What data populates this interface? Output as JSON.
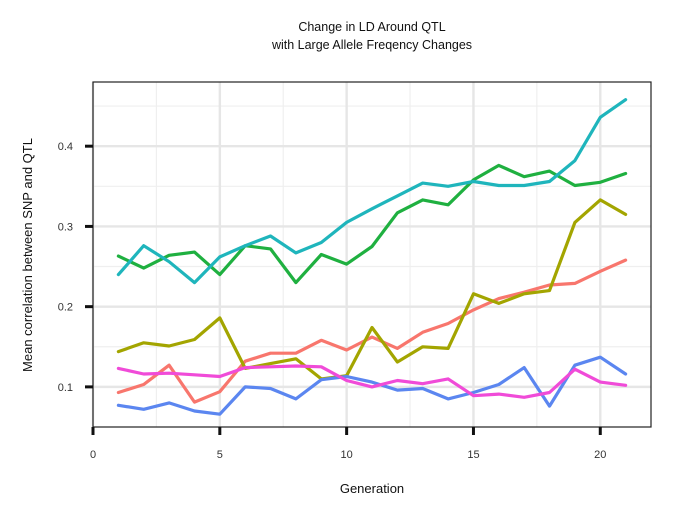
{
  "chart_data": {
    "type": "line",
    "title": "Change in LD Around QTL",
    "subtitle": "with Large Allele Freqency Changes",
    "xlabel": "Generation",
    "ylabel": "Mean correlation between SNP and QTL",
    "xlim": [
      0,
      22
    ],
    "ylim": [
      0.05,
      0.48
    ],
    "x_ticks": [
      0,
      5,
      10,
      15,
      20
    ],
    "y_ticks": [
      0.1,
      0.2,
      0.3,
      0.4
    ],
    "x_minor_ticks": [
      2.5,
      7.5,
      12.5,
      17.5
    ],
    "y_minor_ticks": [
      0.15,
      0.25,
      0.35,
      0.45
    ],
    "grid": true,
    "legend": "none",
    "x": [
      1,
      2,
      3,
      4,
      5,
      6,
      7,
      8,
      9,
      10,
      11,
      12,
      13,
      14,
      15,
      16,
      17,
      18,
      19,
      20,
      21
    ],
    "series": [
      {
        "color": "#F8766D",
        "values": [
          0.093,
          0.103,
          0.127,
          0.081,
          0.094,
          0.132,
          0.142,
          0.142,
          0.158,
          0.146,
          0.162,
          0.148,
          0.168,
          0.179,
          0.196,
          0.21,
          0.218,
          0.227,
          0.229,
          0.244,
          0.258
        ]
      },
      {
        "color": "#A3A500",
        "values": [
          0.144,
          0.155,
          0.151,
          0.159,
          0.186,
          0.123,
          0.129,
          0.135,
          0.11,
          0.114,
          0.174,
          0.131,
          0.15,
          0.148,
          0.216,
          0.204,
          0.216,
          0.22,
          0.305,
          0.333,
          0.315
        ]
      },
      {
        "color": "#1FB040",
        "values": [
          0.263,
          0.248,
          0.264,
          0.268,
          0.24,
          0.276,
          0.272,
          0.23,
          0.265,
          0.253,
          0.275,
          0.317,
          0.333,
          0.327,
          0.358,
          0.376,
          0.362,
          0.369,
          0.351,
          0.355,
          0.366
        ]
      },
      {
        "color": "#1FB5BC",
        "values": [
          0.24,
          0.276,
          0.256,
          0.23,
          0.262,
          0.276,
          0.288,
          0.267,
          0.28,
          0.305,
          0.322,
          0.338,
          0.354,
          0.35,
          0.356,
          0.351,
          0.351,
          0.356,
          0.382,
          0.436,
          0.458
        ]
      },
      {
        "color": "#5B86F0",
        "values": [
          0.077,
          0.072,
          0.08,
          0.07,
          0.066,
          0.1,
          0.098,
          0.085,
          0.109,
          0.113,
          0.106,
          0.096,
          0.098,
          0.085,
          0.093,
          0.103,
          0.124,
          0.076,
          0.127,
          0.137,
          0.116
        ]
      },
      {
        "color": "#F04BD8",
        "values": [
          0.123,
          0.116,
          0.117,
          0.115,
          0.113,
          0.124,
          0.125,
          0.126,
          0.125,
          0.108,
          0.1,
          0.108,
          0.104,
          0.11,
          0.089,
          0.091,
          0.087,
          0.093,
          0.122,
          0.106,
          0.102
        ]
      }
    ]
  }
}
